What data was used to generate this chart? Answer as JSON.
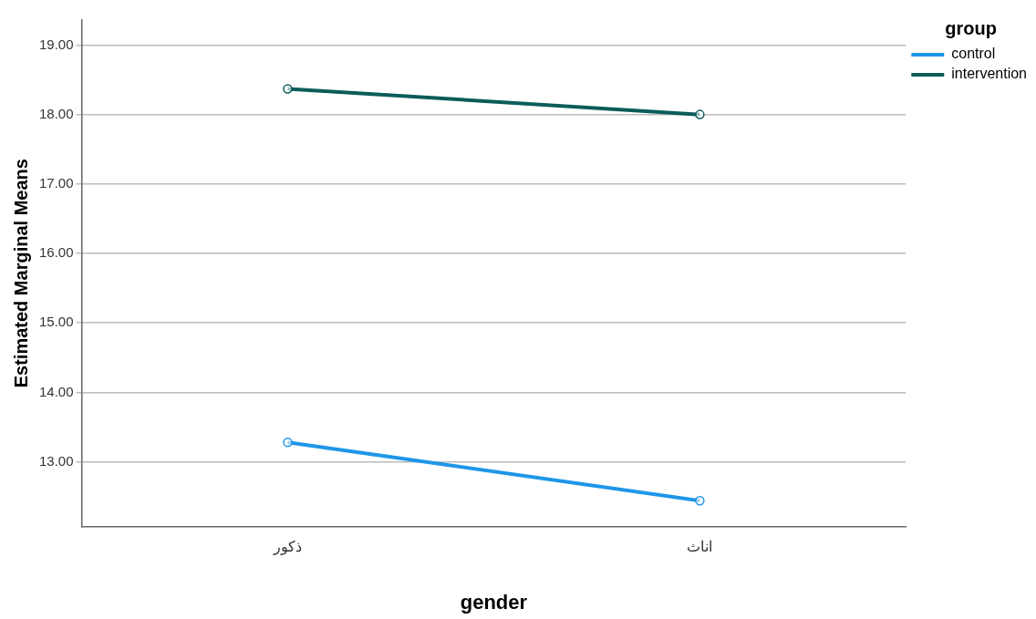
{
  "chart_data": {
    "type": "line",
    "xlabel": "gender",
    "ylabel": "Estimated Marginal Means",
    "legend_title": "group",
    "categories": [
      "ذكور",
      "اناث"
    ],
    "series": [
      {
        "name": "control",
        "color": "#1e96e8",
        "values": [
          13.28,
          12.44
        ]
      },
      {
        "name": "intervention",
        "color": "#0b5c5a",
        "values": [
          18.37,
          18.0
        ]
      }
    ],
    "ylim": [
      12.07,
      19.36
    ],
    "yticks": [
      {
        "value": 13,
        "label": "13.00"
      },
      {
        "value": 14,
        "label": "14.00"
      },
      {
        "value": 15,
        "label": "15.00"
      },
      {
        "value": 16,
        "label": "16.00"
      },
      {
        "value": 17,
        "label": "17.00"
      },
      {
        "value": 18,
        "label": "18.00"
      },
      {
        "value": 19,
        "label": "19.00"
      }
    ],
    "grid": "y",
    "legend": "top right",
    "marker": "circle",
    "line_style": "solid"
  }
}
